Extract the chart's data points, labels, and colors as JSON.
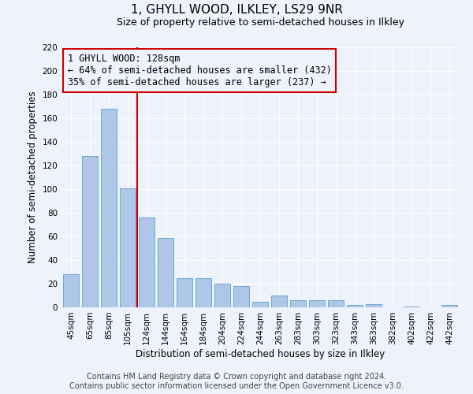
{
  "title": "1, GHYLL WOOD, ILKLEY, LS29 9NR",
  "subtitle": "Size of property relative to semi-detached houses in Ilkley",
  "xlabel": "Distribution of semi-detached houses by size in Ilkley",
  "ylabel": "Number of semi-detached properties",
  "categories": [
    "45sqm",
    "65sqm",
    "85sqm",
    "105sqm",
    "124sqm",
    "144sqm",
    "164sqm",
    "184sqm",
    "204sqm",
    "224sqm",
    "244sqm",
    "263sqm",
    "283sqm",
    "303sqm",
    "323sqm",
    "343sqm",
    "363sqm",
    "382sqm",
    "402sqm",
    "422sqm",
    "442sqm"
  ],
  "values": [
    28,
    128,
    168,
    101,
    76,
    59,
    25,
    25,
    20,
    18,
    5,
    10,
    6,
    6,
    6,
    2,
    3,
    0,
    1,
    0,
    2
  ],
  "bar_color": "#aec6e8",
  "bar_edge_color": "#6fa8d6",
  "property_line_index": 4,
  "property_size": "128sqm",
  "property_name": "1 GHYLL WOOD",
  "pct_smaller": 64,
  "count_smaller": 432,
  "pct_larger": 35,
  "count_larger": 237,
  "annotation_line_color": "#cc0000",
  "annotation_box_edge_color": "#cc0000",
  "ylim": [
    0,
    220
  ],
  "yticks": [
    0,
    20,
    40,
    60,
    80,
    100,
    120,
    140,
    160,
    180,
    200,
    220
  ],
  "footer_line1": "Contains HM Land Registry data © Crown copyright and database right 2024.",
  "footer_line2": "Contains public sector information licensed under the Open Government Licence v3.0.",
  "bg_color": "#eef2fa",
  "grid_color": "#ffffff",
  "title_fontsize": 11,
  "subtitle_fontsize": 9,
  "axis_label_fontsize": 8.5,
  "tick_fontsize": 7.5,
  "annotation_fontsize": 8.5,
  "footer_fontsize": 7
}
